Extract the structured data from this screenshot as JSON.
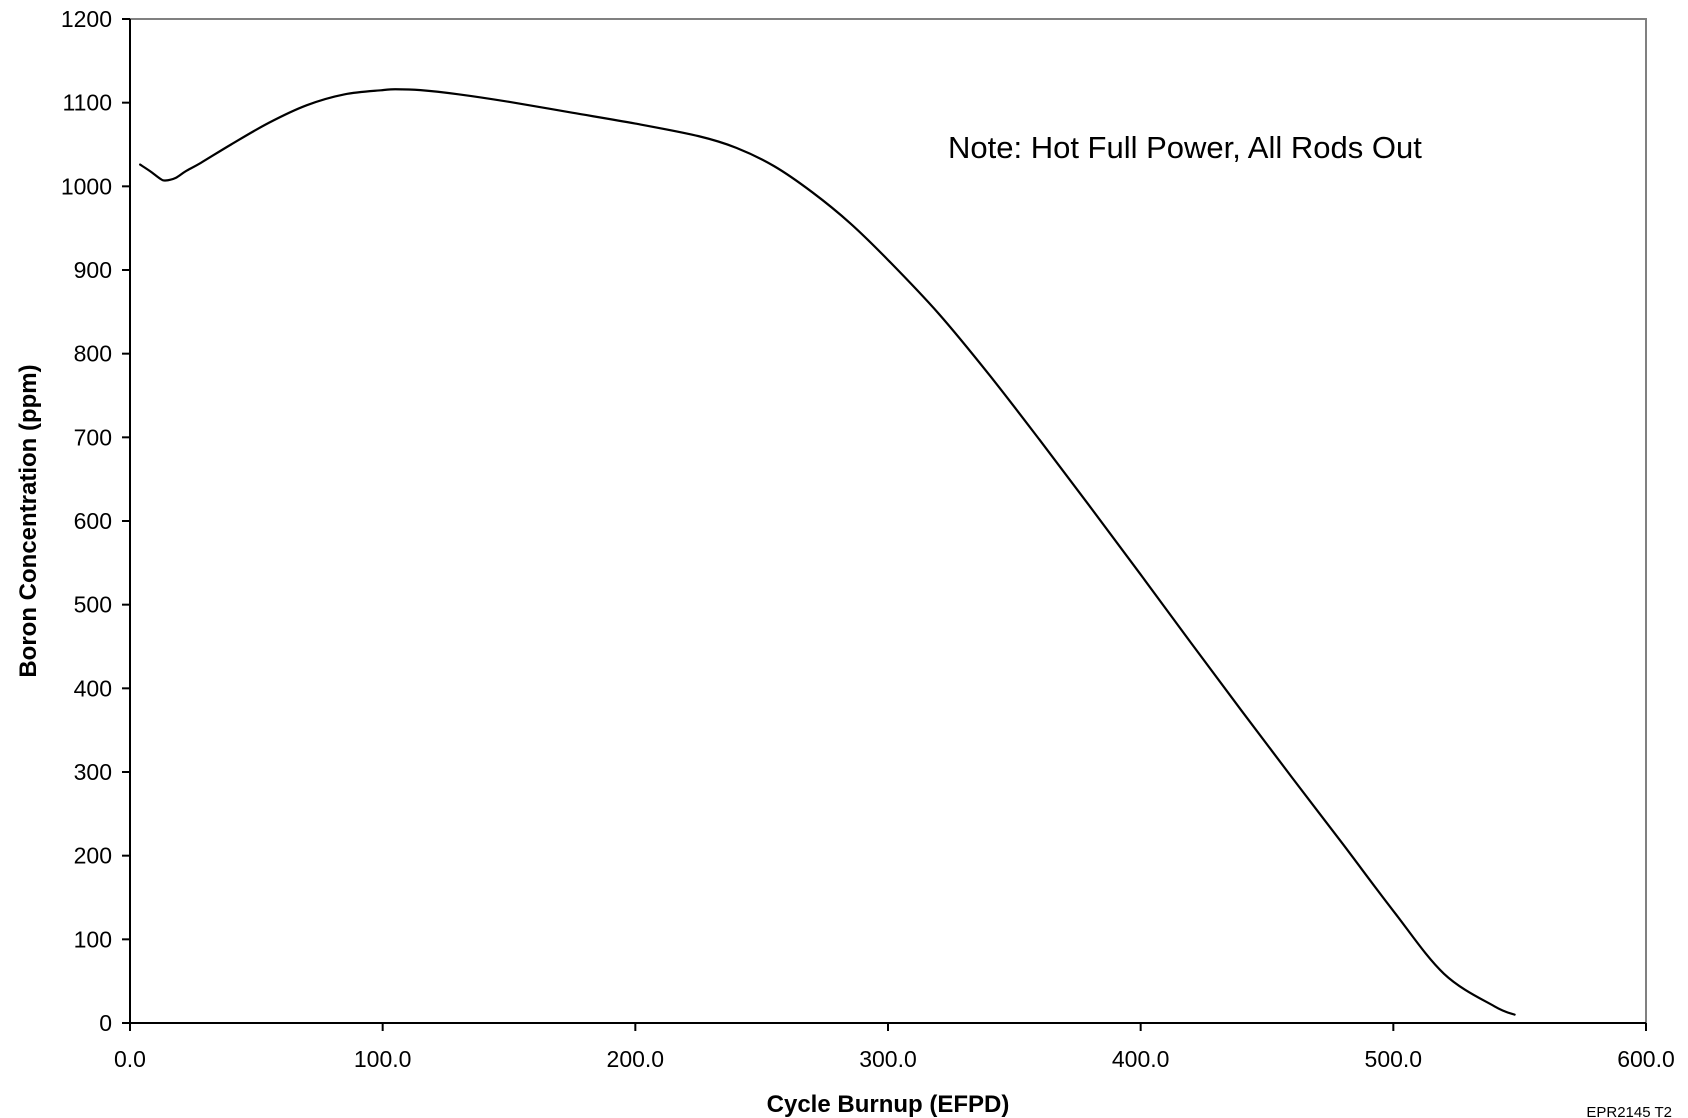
{
  "chart_data": {
    "type": "line",
    "xlabel": "Cycle Burnup (EFPD)",
    "ylabel": "Boron Concentration (ppm)",
    "xlim": [
      0,
      600
    ],
    "ylim": [
      0,
      1200
    ],
    "x_ticks": [
      "0.0",
      "100.0",
      "200.0",
      "300.0",
      "400.0",
      "500.0",
      "600.0"
    ],
    "y_ticks": [
      "0",
      "100",
      "200",
      "300",
      "400",
      "500",
      "600",
      "700",
      "800",
      "900",
      "1000",
      "1100",
      "1200"
    ],
    "grid": false,
    "legend": "none",
    "annotation": "Note: Hot Full Power, All Rods Out",
    "figure_id": "EPR2145 T2",
    "line_color": "#000000",
    "series": [
      {
        "x": [
          4,
          8,
          12,
          14,
          18,
          22,
          28,
          40,
          55,
          70,
          85,
          100,
          105,
          115,
          130,
          150,
          175,
          200,
          225,
          240,
          255,
          270,
          285,
          300,
          320,
          340,
          360,
          380,
          400,
          420,
          440,
          460,
          480,
          500,
          520,
          540,
          548
        ],
        "values": [
          1026,
          1018,
          1009,
          1007,
          1010,
          1018,
          1028,
          1050,
          1076,
          1097,
          1110,
          1115,
          1116,
          1115,
          1110,
          1101,
          1088,
          1075,
          1060,
          1046,
          1024,
          993,
          956,
          912,
          848,
          775,
          697,
          617,
          536,
          454,
          373,
          293,
          214,
          134,
          59,
          20,
          10
        ]
      }
    ]
  }
}
